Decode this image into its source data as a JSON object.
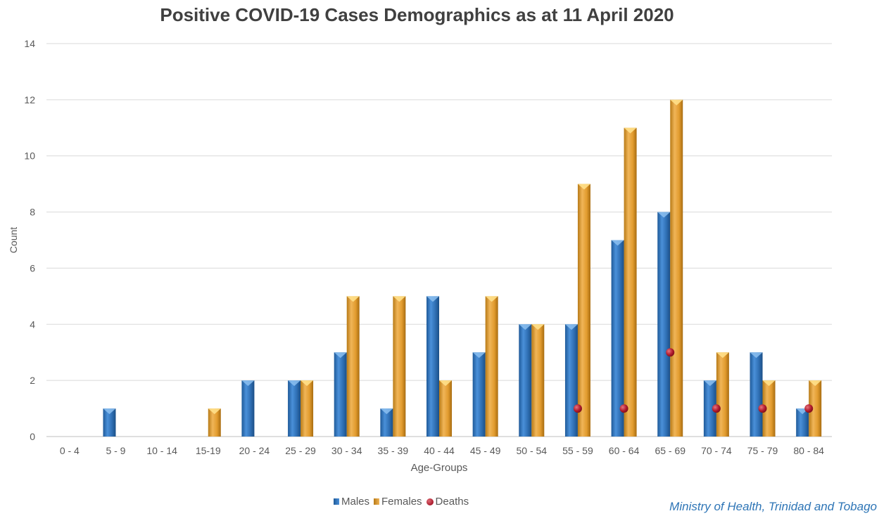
{
  "chart_data": {
    "type": "bar",
    "title": "Positive COVID-19 Cases Demographics as at 11 April 2020",
    "xlabel": "Age-Groups",
    "ylabel": "Count",
    "ylim": [
      0,
      14
    ],
    "yticks": [
      0,
      2,
      4,
      6,
      8,
      10,
      12,
      14
    ],
    "grid": true,
    "legend_position": "bottom",
    "categories": [
      "0 - 4",
      "5 - 9",
      "10 - 14",
      "15-19",
      "20 - 24",
      "25 - 29",
      "30 - 34",
      "35 - 39",
      "40 - 44",
      "45 - 49",
      "50 - 54",
      "55 - 59",
      "60 - 64",
      "65 - 69",
      "70 - 74",
      "75 - 79",
      "80 - 84"
    ],
    "series": [
      {
        "name": "Males",
        "type": "bar",
        "color": "#3b7fc4",
        "values": [
          0,
          1,
          0,
          0,
          2,
          2,
          3,
          1,
          5,
          3,
          4,
          4,
          7,
          8,
          2,
          3,
          1
        ]
      },
      {
        "name": "Females",
        "type": "bar",
        "color": "#e8a33a",
        "values": [
          0,
          0,
          0,
          1,
          0,
          2,
          5,
          5,
          2,
          5,
          4,
          9,
          11,
          12,
          3,
          2,
          2
        ]
      },
      {
        "name": "Deaths",
        "type": "marker",
        "color": "#c0202f",
        "values": [
          null,
          null,
          null,
          null,
          null,
          null,
          null,
          null,
          null,
          null,
          null,
          1,
          1,
          3,
          1,
          1,
          1
        ]
      }
    ]
  },
  "credit": "Ministry of Health, Trinidad and Tobago"
}
